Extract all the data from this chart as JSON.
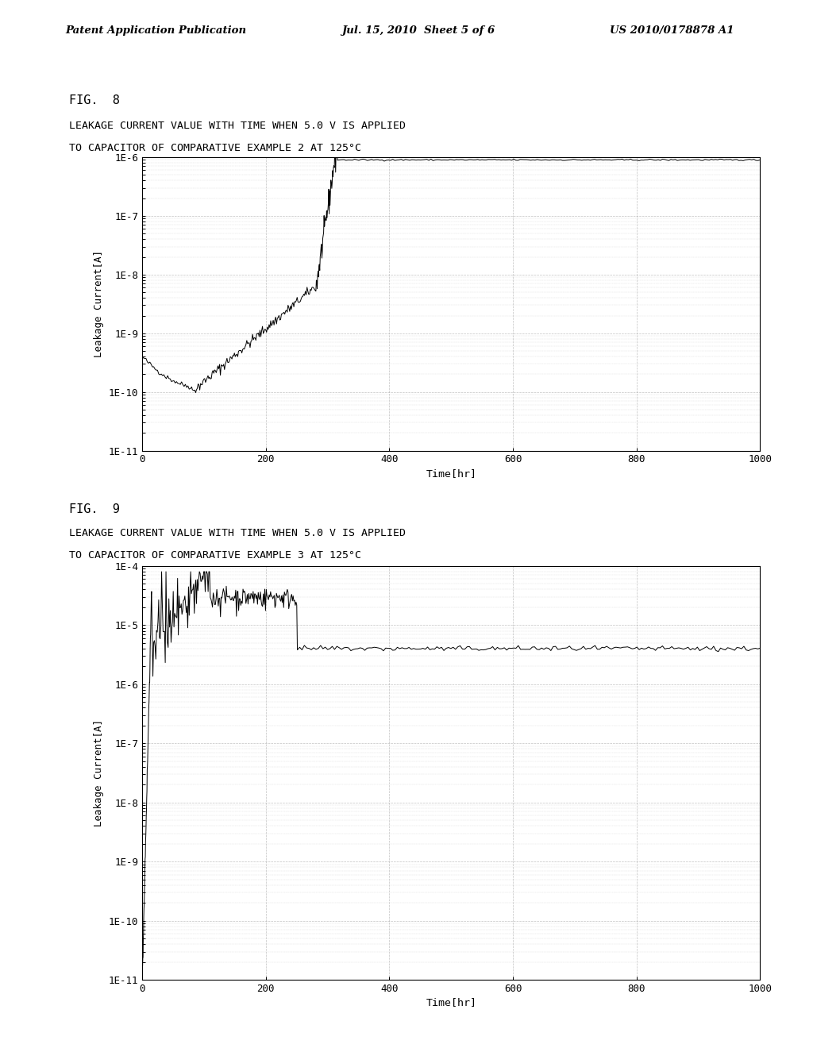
{
  "page_header_left": "Patent Application Publication",
  "page_header_mid": "Jul. 15, 2010  Sheet 5 of 6",
  "page_header_right": "US 2010/0178878 A1",
  "fig8_label": "FIG.  8",
  "fig8_title_line1": "LEAKAGE CURRENT VALUE WITH TIME WHEN 5.0 V IS APPLIED",
  "fig8_title_line2": "TO CAPACITOR OF COMPARATIVE EXAMPLE 2 AT 125°C",
  "fig9_label": "FIG.  9",
  "fig9_title_line1": "LEAKAGE CURRENT VALUE WITH TIME WHEN 5.0 V IS APPLIED",
  "fig9_title_line2": "TO CAPACITOR OF COMPARATIVE EXAMPLE 3 AT 125°C",
  "xlabel": "Time[hr]",
  "ylabel": "Leakage Current[A]",
  "xlim": [
    0,
    1000
  ],
  "xticks": [
    0,
    200,
    400,
    600,
    800,
    1000
  ],
  "fig8_ylim_log": [
    -11,
    -6
  ],
  "fig9_ylim_log": [
    -11,
    -4
  ],
  "fig8_yticks_labels": [
    "1E-11",
    "1E-10",
    "1E-9",
    "1E-8",
    "1E-7",
    "1E-6"
  ],
  "fig9_yticks_labels": [
    "1E-11",
    "1E-10",
    "1E-9",
    "1E-8",
    "1E-7",
    "1E-6",
    "1E-5",
    "1E-4"
  ],
  "background_color": "#ffffff",
  "line_color": "#000000",
  "grid_color": "#999999"
}
